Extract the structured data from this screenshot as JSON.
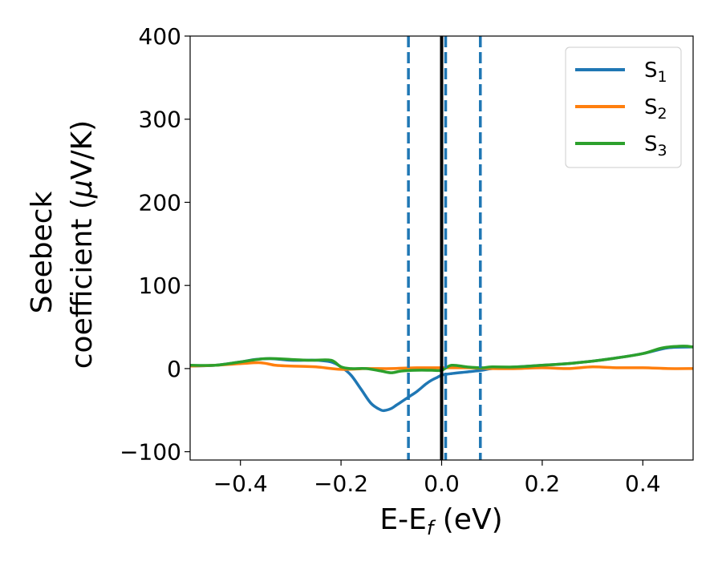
{
  "chart_data": {
    "type": "line",
    "xlabel": {
      "main": "E-E",
      "sub": "f",
      "rest": " (eV)"
    },
    "ylabel": {
      "line1": "Seebeck",
      "line2_prefix": "coefficient  (",
      "line2_mu": "μ",
      "line2_rest": "V/K)"
    },
    "xlim": [
      -0.5,
      0.5
    ],
    "ylim": [
      -110,
      400
    ],
    "xticks": [
      -0.4,
      -0.2,
      0.0,
      0.2,
      0.4
    ],
    "xtick_labels": [
      "−0.4",
      "−0.2",
      "0.0",
      "0.2",
      "0.4"
    ],
    "yticks": [
      -100,
      0,
      100,
      200,
      300,
      400
    ],
    "ytick_labels": [
      "−100",
      "0",
      "100",
      "200",
      "300",
      "400"
    ],
    "legend_placement": "top-right",
    "grid": false,
    "series": [
      {
        "name": "S",
        "sub": "1",
        "color": "#1f77b4",
        "x": [
          -0.5,
          -0.45,
          -0.4,
          -0.37,
          -0.34,
          -0.3,
          -0.25,
          -0.22,
          -0.2,
          -0.18,
          -0.16,
          -0.14,
          -0.12,
          -0.11,
          -0.1,
          -0.09,
          -0.08,
          -0.07,
          -0.06,
          -0.05,
          -0.04,
          -0.03,
          -0.02,
          -0.01,
          0.0,
          0.02,
          0.05,
          0.08,
          0.1,
          0.15,
          0.2,
          0.25,
          0.3,
          0.35,
          0.4,
          0.45,
          0.5
        ],
        "y": [
          3,
          4,
          8,
          11,
          12,
          10,
          10,
          8,
          2,
          -8,
          -25,
          -42,
          -50,
          -50,
          -48,
          -44,
          -40,
          -36,
          -32,
          -28,
          -23,
          -18,
          -14,
          -11,
          -8,
          -6,
          -4,
          -2,
          0,
          2,
          4,
          6,
          9,
          13,
          18,
          25,
          26
        ]
      },
      {
        "name": "S",
        "sub": "2",
        "color": "#ff7f0e",
        "x": [
          -0.5,
          -0.45,
          -0.4,
          -0.36,
          -0.33,
          -0.3,
          -0.25,
          -0.2,
          -0.15,
          -0.1,
          -0.05,
          0.0,
          0.05,
          0.1,
          0.15,
          0.2,
          0.25,
          0.3,
          0.35,
          0.4,
          0.45,
          0.5
        ],
        "y": [
          3,
          4,
          6,
          7,
          4,
          3,
          2,
          -1,
          0,
          0,
          1,
          1,
          1,
          0,
          0,
          1,
          0,
          2,
          1,
          1,
          0,
          0
        ]
      },
      {
        "name": "S",
        "sub": "3",
        "color": "#2ca02c",
        "x": [
          -0.5,
          -0.45,
          -0.4,
          -0.35,
          -0.3,
          -0.26,
          -0.22,
          -0.2,
          -0.18,
          -0.15,
          -0.12,
          -0.1,
          -0.08,
          -0.05,
          -0.02,
          0.0,
          0.02,
          0.05,
          0.08,
          0.1,
          0.15,
          0.2,
          0.25,
          0.3,
          0.35,
          0.4,
          0.44,
          0.48,
          0.5
        ],
        "y": [
          4,
          4,
          8,
          12,
          11,
          10,
          10,
          2,
          0,
          0,
          -3,
          -5,
          -3,
          -2,
          -2,
          -2,
          4,
          2,
          1,
          2,
          2,
          4,
          6,
          9,
          13,
          18,
          25,
          27,
          26
        ]
      }
    ],
    "vlines": [
      {
        "x": -0.066,
        "style": "dashed",
        "color": "#1f77b4"
      },
      {
        "x": 0.0,
        "style": "solid",
        "color": "#000000"
      },
      {
        "x": 0.008,
        "style": "dashed",
        "color": "#1f77b4"
      },
      {
        "x": 0.077,
        "style": "dashed",
        "color": "#1f77b4"
      }
    ]
  }
}
